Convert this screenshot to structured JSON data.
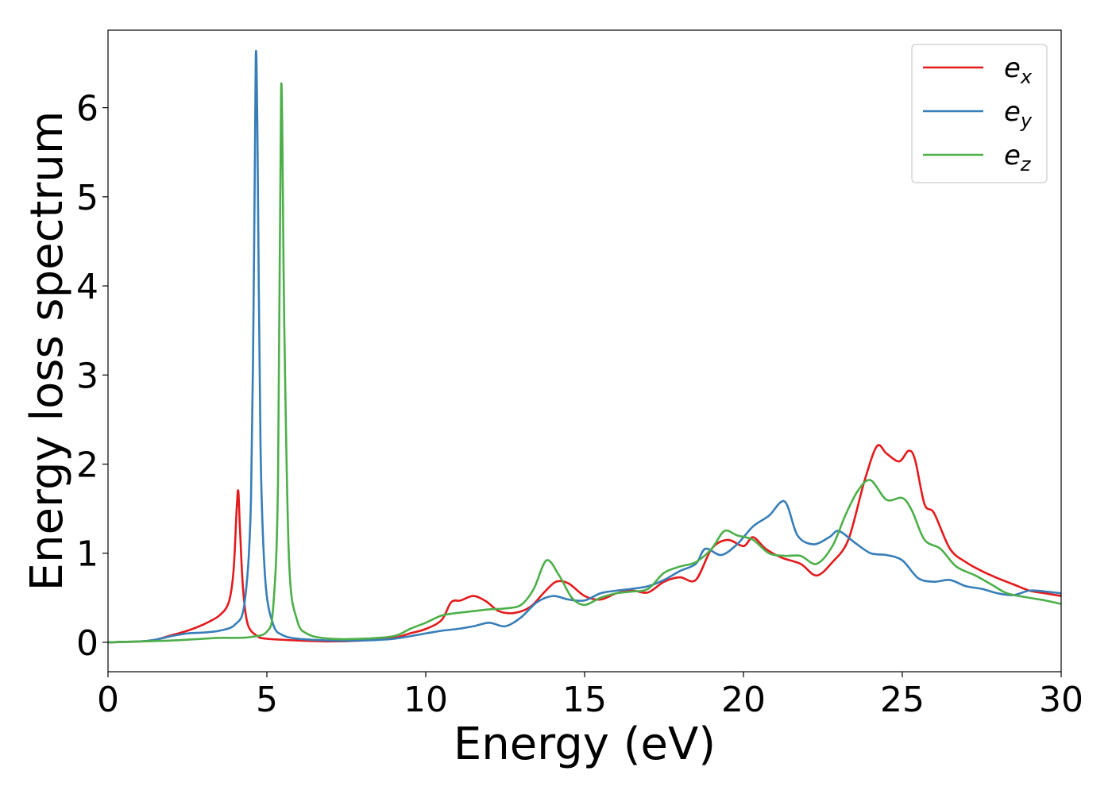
{
  "chart_data": {
    "type": "line",
    "xlabel": "Energy (eV)",
    "ylabel": "Energy loss spectrum",
    "xlim": [
      0,
      30
    ],
    "ylim": [
      -0.33,
      6.87
    ],
    "x_ticks": [
      "0",
      "5",
      "10",
      "15",
      "20",
      "25",
      "30"
    ],
    "y_ticks": [
      "0",
      "1",
      "2",
      "3",
      "4",
      "5",
      "6"
    ],
    "grid": false,
    "legend_position": "top-right",
    "series": [
      {
        "name": "e_x",
        "legend_base": "e",
        "legend_sub": "x",
        "color": "#e41a1c",
        "points": [
          [
            0,
            0
          ],
          [
            1,
            0.01
          ],
          [
            1.5,
            0.03
          ],
          [
            2,
            0.08
          ],
          [
            2.5,
            0.13
          ],
          [
            3,
            0.2
          ],
          [
            3.5,
            0.3
          ],
          [
            3.8,
            0.45
          ],
          [
            3.95,
            0.8
          ],
          [
            4.05,
            1.5
          ],
          [
            4.1,
            1.7
          ],
          [
            4.15,
            1.3
          ],
          [
            4.25,
            0.6
          ],
          [
            4.4,
            0.2
          ],
          [
            4.7,
            0.07
          ],
          [
            5,
            0.04
          ],
          [
            6,
            0.02
          ],
          [
            7,
            0.01
          ],
          [
            8,
            0.02
          ],
          [
            9,
            0.05
          ],
          [
            9.5,
            0.1
          ],
          [
            10,
            0.15
          ],
          [
            10.5,
            0.25
          ],
          [
            10.8,
            0.45
          ],
          [
            11.1,
            0.47
          ],
          [
            11.5,
            0.52
          ],
          [
            11.9,
            0.46
          ],
          [
            12.3,
            0.35
          ],
          [
            12.8,
            0.33
          ],
          [
            13.3,
            0.4
          ],
          [
            13.7,
            0.55
          ],
          [
            14.1,
            0.68
          ],
          [
            14.5,
            0.66
          ],
          [
            15,
            0.52
          ],
          [
            15.5,
            0.48
          ],
          [
            16,
            0.55
          ],
          [
            16.5,
            0.58
          ],
          [
            17,
            0.56
          ],
          [
            17.5,
            0.68
          ],
          [
            18,
            0.73
          ],
          [
            18.5,
            0.7
          ],
          [
            19,
            1.05
          ],
          [
            19.5,
            1.15
          ],
          [
            20,
            1.08
          ],
          [
            20.3,
            1.18
          ],
          [
            20.7,
            1.05
          ],
          [
            21.2,
            0.95
          ],
          [
            21.8,
            0.88
          ],
          [
            22.3,
            0.75
          ],
          [
            22.8,
            0.9
          ],
          [
            23.3,
            1.15
          ],
          [
            23.8,
            1.8
          ],
          [
            24.2,
            2.2
          ],
          [
            24.5,
            2.12
          ],
          [
            24.9,
            2.03
          ],
          [
            25.2,
            2.15
          ],
          [
            25.4,
            2.05
          ],
          [
            25.7,
            1.55
          ],
          [
            26,
            1.45
          ],
          [
            26.5,
            1.05
          ],
          [
            27,
            0.9
          ],
          [
            27.5,
            0.8
          ],
          [
            28,
            0.72
          ],
          [
            28.5,
            0.65
          ],
          [
            29,
            0.58
          ],
          [
            29.5,
            0.55
          ],
          [
            30,
            0.52
          ]
        ]
      },
      {
        "name": "e_y",
        "legend_base": "e",
        "legend_sub": "y",
        "color": "#377eb8",
        "points": [
          [
            0,
            0
          ],
          [
            1,
            0.01
          ],
          [
            1.5,
            0.03
          ],
          [
            2,
            0.07
          ],
          [
            2.5,
            0.1
          ],
          [
            3,
            0.11
          ],
          [
            3.5,
            0.13
          ],
          [
            4,
            0.2
          ],
          [
            4.3,
            0.45
          ],
          [
            4.5,
            1.6
          ],
          [
            4.6,
            4.5
          ],
          [
            4.65,
            6.57
          ],
          [
            4.7,
            5.8
          ],
          [
            4.8,
            2.2
          ],
          [
            4.95,
            0.7
          ],
          [
            5.2,
            0.2
          ],
          [
            5.5,
            0.08
          ],
          [
            6,
            0.04
          ],
          [
            7,
            0.02
          ],
          [
            8,
            0.02
          ],
          [
            9,
            0.04
          ],
          [
            10,
            0.1
          ],
          [
            10.5,
            0.13
          ],
          [
            11,
            0.15
          ],
          [
            11.5,
            0.18
          ],
          [
            12,
            0.22
          ],
          [
            12.5,
            0.18
          ],
          [
            13,
            0.28
          ],
          [
            13.5,
            0.45
          ],
          [
            14,
            0.52
          ],
          [
            14.5,
            0.48
          ],
          [
            15,
            0.47
          ],
          [
            15.5,
            0.55
          ],
          [
            16,
            0.58
          ],
          [
            16.5,
            0.6
          ],
          [
            17,
            0.63
          ],
          [
            17.5,
            0.7
          ],
          [
            18,
            0.8
          ],
          [
            18.5,
            0.88
          ],
          [
            18.8,
            1.05
          ],
          [
            19.3,
            0.98
          ],
          [
            19.8,
            1.1
          ],
          [
            20.3,
            1.3
          ],
          [
            20.8,
            1.42
          ],
          [
            21.3,
            1.58
          ],
          [
            21.7,
            1.2
          ],
          [
            22.2,
            1.1
          ],
          [
            22.7,
            1.18
          ],
          [
            23,
            1.25
          ],
          [
            23.5,
            1.12
          ],
          [
            24,
            1.0
          ],
          [
            24.5,
            0.98
          ],
          [
            25,
            0.92
          ],
          [
            25.5,
            0.72
          ],
          [
            26,
            0.68
          ],
          [
            26.5,
            0.7
          ],
          [
            27,
            0.63
          ],
          [
            27.5,
            0.6
          ],
          [
            28,
            0.55
          ],
          [
            28.5,
            0.53
          ],
          [
            29,
            0.58
          ],
          [
            29.5,
            0.57
          ],
          [
            30,
            0.55
          ]
        ]
      },
      {
        "name": "e_z",
        "legend_base": "e",
        "legend_sub": "z",
        "color": "#4daf4a",
        "points": [
          [
            0,
            0
          ],
          [
            1,
            0.01
          ],
          [
            2,
            0.02
          ],
          [
            3,
            0.04
          ],
          [
            3.5,
            0.05
          ],
          [
            4,
            0.05
          ],
          [
            4.5,
            0.06
          ],
          [
            5,
            0.12
          ],
          [
            5.2,
            0.4
          ],
          [
            5.35,
            1.8
          ],
          [
            5.45,
            6.25
          ],
          [
            5.55,
            3.5
          ],
          [
            5.7,
            0.9
          ],
          [
            5.95,
            0.25
          ],
          [
            6.3,
            0.09
          ],
          [
            7,
            0.04
          ],
          [
            8,
            0.04
          ],
          [
            9,
            0.07
          ],
          [
            9.5,
            0.15
          ],
          [
            10,
            0.22
          ],
          [
            10.5,
            0.3
          ],
          [
            11,
            0.33
          ],
          [
            11.5,
            0.35
          ],
          [
            12,
            0.37
          ],
          [
            12.5,
            0.38
          ],
          [
            13,
            0.42
          ],
          [
            13.4,
            0.6
          ],
          [
            13.8,
            0.92
          ],
          [
            14.2,
            0.75
          ],
          [
            14.6,
            0.5
          ],
          [
            15,
            0.42
          ],
          [
            15.5,
            0.5
          ],
          [
            16,
            0.55
          ],
          [
            16.5,
            0.57
          ],
          [
            17,
            0.6
          ],
          [
            17.5,
            0.78
          ],
          [
            18,
            0.85
          ],
          [
            18.5,
            0.9
          ],
          [
            19,
            1.05
          ],
          [
            19.4,
            1.25
          ],
          [
            19.8,
            1.2
          ],
          [
            20.3,
            1.15
          ],
          [
            20.8,
            1.0
          ],
          [
            21.3,
            0.97
          ],
          [
            21.8,
            0.97
          ],
          [
            22.3,
            0.88
          ],
          [
            22.8,
            1.08
          ],
          [
            23.2,
            1.42
          ],
          [
            23.6,
            1.7
          ],
          [
            24,
            1.82
          ],
          [
            24.5,
            1.6
          ],
          [
            25,
            1.62
          ],
          [
            25.3,
            1.48
          ],
          [
            25.7,
            1.15
          ],
          [
            26.2,
            1.05
          ],
          [
            26.7,
            0.85
          ],
          [
            27.3,
            0.75
          ],
          [
            27.8,
            0.65
          ],
          [
            28.3,
            0.55
          ],
          [
            29,
            0.5
          ],
          [
            29.5,
            0.47
          ],
          [
            30,
            0.43
          ]
        ]
      }
    ]
  }
}
